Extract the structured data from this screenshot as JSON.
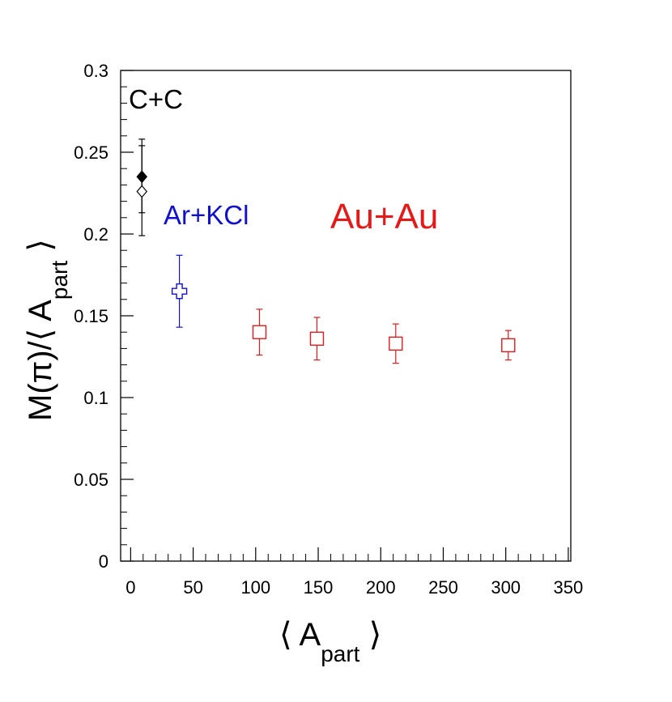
{
  "chart_data": {
    "type": "scatter",
    "xlim": [
      -8,
      352
    ],
    "ylim": [
      0,
      0.3
    ],
    "x_ticks": [
      {
        "value": 0,
        "label": "0"
      },
      {
        "value": 50,
        "label": "50"
      },
      {
        "value": 100,
        "label": "100"
      },
      {
        "value": 150,
        "label": "150"
      },
      {
        "value": 200,
        "label": "200"
      },
      {
        "value": 250,
        "label": "250"
      },
      {
        "value": 300,
        "label": "300"
      },
      {
        "value": 350,
        "label": "350"
      }
    ],
    "y_ticks": [
      {
        "value": 0,
        "label": "0"
      },
      {
        "value": 0.05,
        "label": "0.05"
      },
      {
        "value": 0.1,
        "label": "0.1"
      },
      {
        "value": 0.15,
        "label": "0.15"
      },
      {
        "value": 0.2,
        "label": "0.2"
      },
      {
        "value": 0.25,
        "label": "0.25"
      },
      {
        "value": 0.3,
        "label": "0.3"
      }
    ],
    "xlabel": {
      "open": "⟨ A",
      "sub": "part",
      "close": " ⟩"
    },
    "ylabel": {
      "open": "M(π)/⟨ A",
      "sub": "part",
      "close": " ⟩"
    },
    "series": [
      {
        "name": "C+C",
        "color": "#000000",
        "points": [
          {
            "x": 9,
            "y": 0.235,
            "err_low": 0.213,
            "err_high": 0.258,
            "marker": "diamond-filled"
          },
          {
            "x": 9,
            "y": 0.226,
            "err_low": 0.199,
            "err_high": 0.254,
            "marker": "diamond-open"
          }
        ]
      },
      {
        "name": "Ar+KCl",
        "color": "#1010d0",
        "points": [
          {
            "x": 39,
            "y": 0.165,
            "err_low": 0.143,
            "err_high": 0.187,
            "marker": "cross-open"
          }
        ]
      },
      {
        "name": "Au+Au",
        "color": "#e61919",
        "points": [
          {
            "x": 103,
            "y": 0.14,
            "err_low": 0.126,
            "err_high": 0.154,
            "marker": "square-open"
          },
          {
            "x": 149,
            "y": 0.136,
            "err_low": 0.123,
            "err_high": 0.149,
            "marker": "square-open"
          },
          {
            "x": 212,
            "y": 0.133,
            "err_low": 0.121,
            "err_high": 0.145,
            "marker": "square-open"
          },
          {
            "x": 302,
            "y": 0.132,
            "err_low": 0.123,
            "err_high": 0.141,
            "marker": "square-open"
          }
        ]
      }
    ],
    "annotations": [
      {
        "text": "C+C",
        "color": "#000000"
      },
      {
        "text": "Ar+KCl",
        "color": "#1010d0"
      },
      {
        "text": "Au+Au",
        "color": "#e61919"
      }
    ]
  }
}
